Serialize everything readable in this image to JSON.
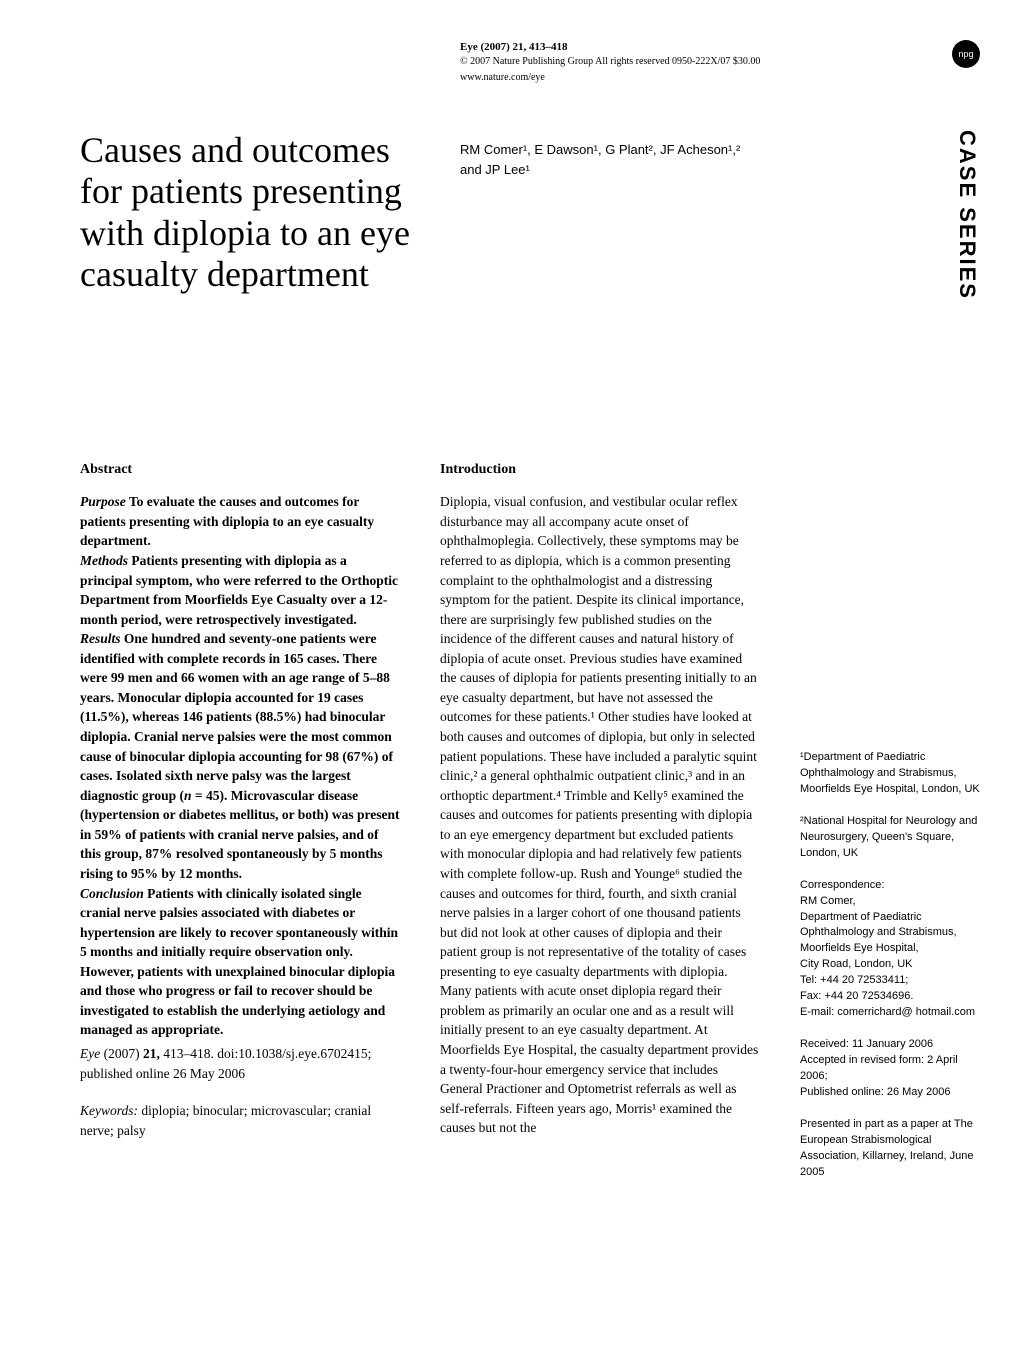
{
  "journal": {
    "line1": "Eye (2007) 21, 413–418",
    "line2": "© 2007 Nature Publishing Group All rights reserved 0950-222X/07 $30.00",
    "line3": "www.nature.com/eye"
  },
  "npg_logo": "npg",
  "title": "Causes and outcomes for patients presenting with diplopia to an eye casualty department",
  "authors": {
    "line1": "RM Comer¹, E Dawson¹, G Plant², JF Acheson¹,²",
    "line2": "and JP Lee¹"
  },
  "section_label": "CASE SERIES",
  "abstract": {
    "heading": "Abstract",
    "purpose_label": "Purpose",
    "purpose_text": "   To evaluate the causes and outcomes for patients presenting with diplopia to an eye casualty department.",
    "methods_label": "Methods",
    "methods_text": "   Patients presenting with diplopia as a principal symptom, who were referred to the Orthoptic Department from Moorfields Eye Casualty over a 12-month period, were retrospectively investigated.",
    "results_label": "Results",
    "results_text_a": "   One hundred and seventy-one patients were identified with complete records in 165 cases. There were 99 men and 66 women with an age range of 5–88 years. Monocular diplopia accounted for 19 cases (11.5%), whereas 146 patients (88.5%) had binocular diplopia. Cranial nerve palsies were the most common cause of binocular diplopia accounting for 98 (67%) of cases. Isolated sixth nerve palsy was the largest diagnostic group (",
    "results_n": "n",
    "results_text_b": " = 45). Microvascular disease (hypertension or diabetes mellitus, or both) was present in 59% of patients with cranial nerve palsies, and of this group, 87% resolved spontaneously by 5 months rising to 95% by 12 months.",
    "conclusion_label": "Conclusion",
    "conclusion_text": "   Patients with clinically isolated single cranial nerve palsies associated with diabetes or hypertension are likely to recover spontaneously within 5 months and initially require observation only. However, patients with unexplained binocular diplopia and those who progress or fail to recover should be investigated to establish the underlying aetiology and managed as appropriate.",
    "citation_a": "Eye",
    "citation_b": " (2007) ",
    "citation_c": "21,",
    "citation_d": " 413–418. doi:10.1038/sj.eye.6702415; published online 26 May 2006",
    "keywords_label": "Keywords:",
    "keywords_text": " diplopia; binocular; microvascular; cranial nerve; palsy"
  },
  "introduction": {
    "heading": "Introduction",
    "body": "Diplopia, visual confusion, and vestibular ocular reflex disturbance may all accompany acute onset of ophthalmoplegia. Collectively, these symptoms may be referred to as diplopia, which is a common presenting complaint to the ophthalmologist and a distressing symptom for the patient. Despite its clinical importance, there are surprisingly few published studies on the incidence of the different causes and natural history of diplopia of acute onset. Previous studies have examined the causes of diplopia for patients presenting initially to an eye casualty department, but have not assessed the outcomes for these patients.¹ Other studies have looked at both causes and outcomes of diplopia, but only in selected patient populations. These have included a paralytic squint clinic,² a general ophthalmic outpatient clinic,³ and in an orthoptic department.⁴ Trimble and Kelly⁵ examined the causes and outcomes for patients presenting with diplopia to an eye emergency department but excluded patients with monocular diplopia and had relatively few patients with complete follow-up. Rush and Younge⁶ studied the causes and outcomes for third, fourth, and sixth cranial nerve palsies in a larger cohort of one thousand patients but did not look at other causes of diplopia and their patient group is not representative of the totality of cases presenting to eye casualty departments with diplopia. Many patients with acute onset diplopia regard their problem as primarily an ocular one and as a result will initially present to an eye casualty department. At Moorfields Eye Hospital, the casualty department provides a twenty-four-hour emergency service that includes General Practioner and Optometrist referrals as well as self-referrals. Fifteen years ago, Morris¹ examined the causes but not the"
  },
  "sidebar": {
    "affil1": "¹Department of Paediatric Ophthalmology and Strabismus, Moorfields Eye Hospital, London, UK",
    "affil2": "²National Hospital for Neurology and Neurosurgery, Queen's Square, London, UK",
    "correspondence": "Correspondence:\nRM Comer,\nDepartment of Paediatric Ophthalmology and Strabismus,\nMoorfields Eye Hospital,\nCity Road, London, UK\nTel: +44 20 72533411;\nFax: +44 20 72534696.\nE-mail: comerrichard@ hotmail.com",
    "dates": "Received: 11 January 2006\nAccepted in revised form: 2 April 2006;\nPublished online: 26 May 2006",
    "presented": "Presented in part as a paper at The European Strabismological Association, Killarney, Ireland, June 2005"
  }
}
